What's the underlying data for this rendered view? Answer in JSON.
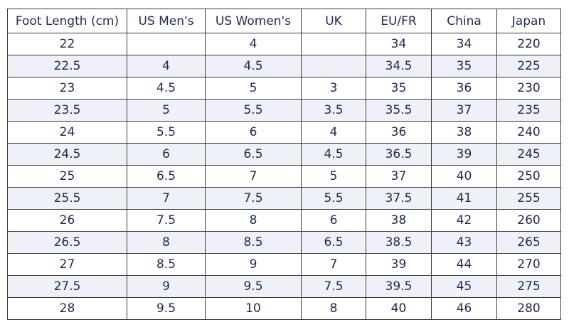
{
  "table": {
    "headers": [
      "Foot Length (cm)",
      "US Men's",
      "US Women's",
      "UK",
      "EU/FR",
      "China",
      "Japan"
    ],
    "rows": [
      [
        "22",
        "",
        "4",
        "",
        "34",
        "34",
        "220"
      ],
      [
        "22.5",
        "4",
        "4.5",
        "",
        "34.5",
        "35",
        "225"
      ],
      [
        "23",
        "4.5",
        "5",
        "3",
        "35",
        "36",
        "230"
      ],
      [
        "23.5",
        "5",
        "5.5",
        "3.5",
        "35.5",
        "37",
        "235"
      ],
      [
        "24",
        "5.5",
        "6",
        "4",
        "36",
        "38",
        "240"
      ],
      [
        "24.5",
        "6",
        "6.5",
        "4.5",
        "36.5",
        "39",
        "245"
      ],
      [
        "25",
        "6.5",
        "7",
        "5",
        "37",
        "40",
        "250"
      ],
      [
        "25.5",
        "7",
        "7.5",
        "5.5",
        "37.5",
        "41",
        "255"
      ],
      [
        "26",
        "7.5",
        "8",
        "6",
        "38",
        "42",
        "260"
      ],
      [
        "26.5",
        "8",
        "8.5",
        "6.5",
        "38.5",
        "43",
        "265"
      ],
      [
        "27",
        "8.5",
        "9",
        "7",
        "39",
        "44",
        "270"
      ],
      [
        "27.5",
        "9",
        "9.5",
        "7.5",
        "39.5",
        "45",
        "275"
      ],
      [
        "28",
        "9.5",
        "10",
        "8",
        "40",
        "46",
        "280"
      ]
    ]
  },
  "colors": {
    "text": "#1e2a50",
    "border": "#3a3a3a",
    "stripe": "#eef2f8"
  }
}
